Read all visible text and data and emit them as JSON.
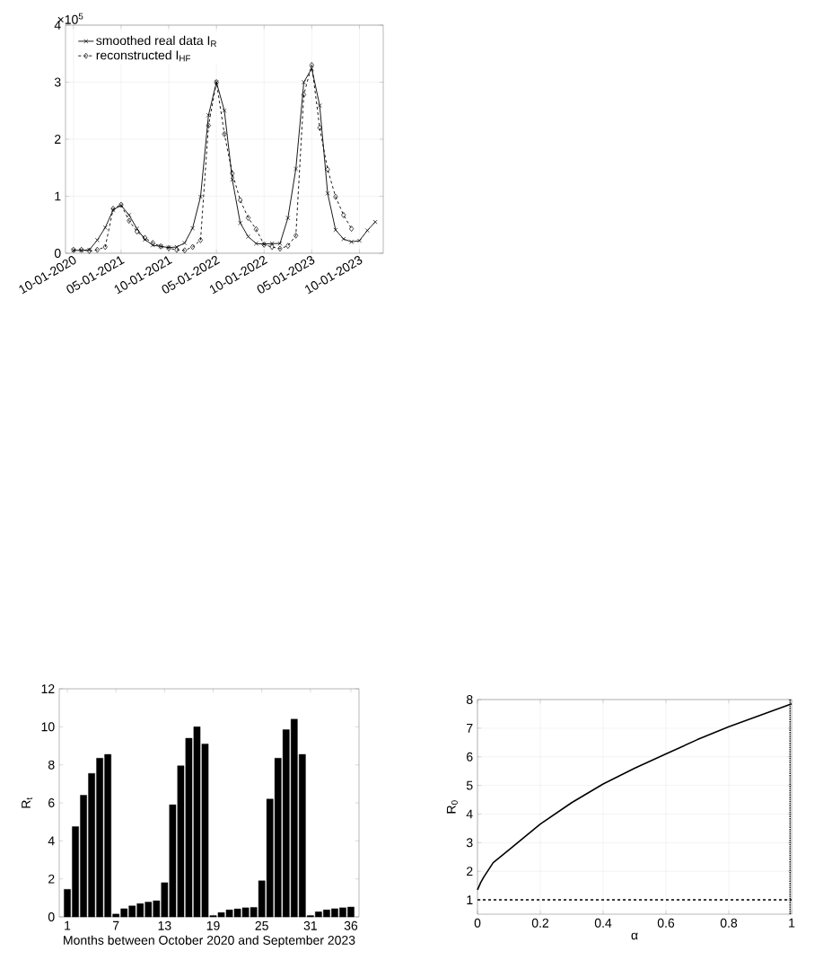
{
  "chart_data": [
    {
      "type": "line",
      "annotations": [
        "×10$^{5}$"
      ],
      "categories": [
        "10-01-2020",
        null,
        null,
        null,
        null,
        null,
        "05-01-2021",
        null,
        null,
        null,
        null,
        null,
        "10-01-2021",
        null,
        null,
        null,
        null,
        null,
        "05-01-2022",
        null,
        null,
        null,
        null,
        null,
        "10-01-2022",
        null,
        null,
        null,
        null,
        null,
        "05-01-2023",
        null,
        null,
        null,
        null,
        null,
        "10-01-2023",
        null,
        null
      ],
      "series": [
        {
          "name": "smoothed real data I$_{R}$",
          "color": "#000000",
          "marker": "cross",
          "line_style": "solid",
          "values": [
            0.05,
            0.05,
            0.06,
            0.23,
            0.45,
            0.76,
            0.84,
            0.67,
            0.43,
            0.24,
            0.14,
            0.12,
            0.1,
            0.11,
            0.18,
            0.44,
            0.99,
            2.42,
            3.0,
            2.5,
            1.29,
            0.53,
            0.29,
            0.17,
            0.16,
            0.17,
            0.17,
            0.62,
            1.48,
            3.0,
            3.24,
            2.59,
            1.05,
            0.41,
            0.25,
            0.2,
            0.22,
            0.4,
            0.55
          ]
        },
        {
          "name": "reconstructed I$_{HF}$",
          "color": "#000000",
          "marker": "diamond",
          "line_style": "dashed",
          "values": [
            0.06,
            0.06,
            0.04,
            0.06,
            0.11,
            0.78,
            0.85,
            0.57,
            0.38,
            0.27,
            0.18,
            0.12,
            0.09,
            0.06,
            0.05,
            0.11,
            0.23,
            2.24,
            3.0,
            2.09,
            1.4,
            0.93,
            0.62,
            0.42,
            0.15,
            0.11,
            0.08,
            0.13,
            0.31,
            2.78,
            3.3,
            2.2,
            1.47,
            0.99,
            0.67,
            0.43,
            null,
            null,
            null
          ]
        }
      ],
      "ylim": [
        0,
        4
      ],
      "yticks": [
        0,
        1,
        2,
        3,
        4
      ],
      "grid": true,
      "legend": "top left"
    },
    {
      "type": "bar",
      "xlabel": "Months between October 2020 and September 2023",
      "ylabel": "R$_{t}$",
      "color": "#000000",
      "x": [
        1,
        2,
        3,
        4,
        5,
        6,
        7,
        8,
        9,
        10,
        11,
        12,
        13,
        14,
        15,
        16,
        17,
        18,
        19,
        20,
        21,
        22,
        23,
        24,
        25,
        26,
        27,
        28,
        29,
        30,
        31,
        32,
        33,
        34,
        35,
        36
      ],
      "values": [
        1.45,
        4.75,
        6.4,
        7.55,
        8.35,
        8.55,
        0.15,
        0.43,
        0.58,
        0.7,
        0.78,
        0.85,
        1.8,
        5.9,
        7.95,
        9.4,
        10.0,
        9.1,
        0.07,
        0.23,
        0.37,
        0.42,
        0.48,
        0.5,
        1.9,
        6.2,
        8.35,
        9.85,
        10.4,
        8.55,
        0.07,
        0.27,
        0.37,
        0.43,
        0.48,
        0.52
      ],
      "xlim": [
        0,
        37
      ],
      "ylim": [
        0,
        12
      ],
      "xticks": [
        1,
        7,
        13,
        19,
        25,
        31,
        36
      ],
      "yticks": [
        0,
        2,
        4,
        6,
        8,
        10,
        12
      ]
    },
    {
      "type": "line",
      "xlabel": "α",
      "ylabel": "R$_{0}$",
      "color": "#000000",
      "line_style": "solid",
      "x": [
        0,
        0.01,
        0.02,
        0.05,
        0.1,
        0.15,
        0.2,
        0.3,
        0.4,
        0.5,
        0.6,
        0.7,
        0.8,
        0.9,
        1.0
      ],
      "values": [
        1.35,
        1.6,
        1.8,
        2.3,
        2.75,
        3.2,
        3.65,
        4.4,
        5.05,
        5.6,
        6.1,
        6.6,
        7.05,
        7.45,
        7.85
      ],
      "xlim": [
        0,
        1
      ],
      "ylim": [
        0.5,
        8
      ],
      "xticks": [
        0,
        0.2,
        0.4,
        0.6,
        0.8,
        1
      ],
      "yticks": [
        1,
        2,
        3,
        4,
        5,
        6,
        7,
        8
      ],
      "grid": true,
      "ref_lines": [
        {
          "axis": "y",
          "value": 1,
          "line_style": "dashed"
        },
        {
          "axis": "x",
          "value": 0.995,
          "line_style": "dotted"
        }
      ]
    }
  ]
}
